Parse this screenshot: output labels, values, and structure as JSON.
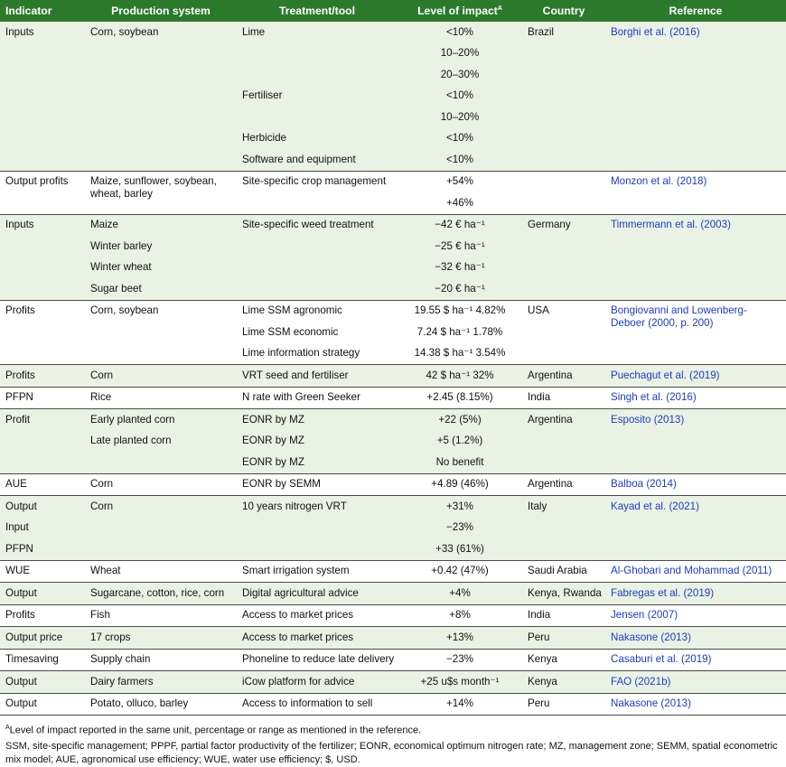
{
  "table": {
    "headers": {
      "indicator": "Indicator",
      "production_system": "Production system",
      "treatment": "Treatment/tool",
      "impact": "Level of impact",
      "impact_sup": "A",
      "country": "Country",
      "reference": "Reference"
    },
    "rows": [
      {
        "indicator": "Inputs",
        "production": "Corn, soybean",
        "treatment": "Lime",
        "impact": "<10%",
        "country": "Brazil",
        "reference": "Borghi et al. (2016)"
      },
      {
        "impact": "10–20%"
      },
      {
        "impact": "20–30%"
      },
      {
        "treatment": "Fertiliser",
        "impact": "<10%"
      },
      {
        "impact": "10–20%"
      },
      {
        "treatment": "Herbicide",
        "impact": "<10%"
      },
      {
        "treatment": "Software and equipment",
        "impact": "<10%"
      },
      {
        "indicator": "Output profits",
        "production": "Maize, sunflower, soybean, wheat, barley",
        "treatment": "Site-specific crop management",
        "impact": "+54%",
        "reference": "Monzon et al. (2018)"
      },
      {
        "impact": "+46%"
      },
      {
        "indicator": "Inputs",
        "production": "Maize",
        "treatment": "Site-specific weed treatment",
        "impact": "−42 € ha⁻¹",
        "country": "Germany",
        "reference": "Timmermann et al. (2003)"
      },
      {
        "production": "Winter barley",
        "impact": "−25 € ha⁻¹"
      },
      {
        "production": "Winter wheat",
        "impact": "−32 € ha⁻¹"
      },
      {
        "production": "Sugar beet",
        "impact": "−20 € ha⁻¹"
      },
      {
        "indicator": "Profits",
        "production": "Corn, soybean",
        "treatment": "Lime SSM agronomic",
        "impact": "19.55 $ ha⁻¹ 4.82%",
        "country": "USA",
        "reference": "Bongiovanni and Lowenberg-Deboer (2000, p. 200)"
      },
      {
        "treatment": "Lime SSM economic",
        "impact": "7.24 $ ha⁻¹ 1.78%"
      },
      {
        "treatment": "Lime information strategy",
        "impact": "14.38 $ ha⁻¹ 3.54%"
      },
      {
        "indicator": "Profits",
        "production": "Corn",
        "treatment": "VRT seed and fertiliser",
        "impact": "42 $ ha⁻¹ 32%",
        "country": "Argentina",
        "reference": "Puechagut et al. (2019)"
      },
      {
        "indicator": "PFPN",
        "production": "Rice",
        "treatment": "N rate with Green Seeker",
        "impact": "+2.45 (8.15%)",
        "country": "India",
        "reference": "Singh et al. (2016)"
      },
      {
        "indicator": "Profit",
        "production": "Early planted corn",
        "treatment": "EONR by MZ",
        "impact": "+22 (5%)",
        "country": "Argentina",
        "reference": "Esposito (2013)"
      },
      {
        "production": "Late planted corn",
        "treatment": "EONR by MZ",
        "impact": "+5 (1.2%)"
      },
      {
        "treatment": "EONR by MZ",
        "impact": "No benefit"
      },
      {
        "indicator": "AUE",
        "production": "Corn",
        "treatment": "EONR by SEMM",
        "impact": "+4.89 (46%)",
        "country": "Argentina",
        "reference": "Balboa (2014)"
      },
      {
        "indicator": "Output",
        "production": "Corn",
        "treatment": "10 years nitrogen VRT",
        "impact": "+31%",
        "country": "Italy",
        "reference": "Kayad et al. (2021)"
      },
      {
        "indicator": "Input",
        "impact": "−23%"
      },
      {
        "indicator": "PFPN",
        "impact": "+33 (61%)"
      },
      {
        "indicator": "WUE",
        "production": "Wheat",
        "treatment": "Smart irrigation system",
        "impact": "+0.42 (47%)",
        "country": "Saudi Arabia",
        "reference": "Al-Ghobari and Mohammad (2011)"
      },
      {
        "indicator": "Output",
        "production": "Sugarcane, cotton, rice, corn",
        "treatment": "Digital agricultural advice",
        "impact": "+4%",
        "country": "Kenya, Rwanda",
        "reference": "Fabregas et al. (2019)"
      },
      {
        "indicator": "Profits",
        "production": "Fish",
        "treatment": "Access to market prices",
        "impact": "+8%",
        "country": "India",
        "reference": "Jensen (2007)"
      },
      {
        "indicator": "Output price",
        "production": "17 crops",
        "treatment": "Access to market prices",
        "impact": "+13%",
        "country": "Peru",
        "reference": "Nakasone (2013)"
      },
      {
        "indicator": "Timesaving",
        "production": "Supply chain",
        "treatment": "Phoneline to reduce late delivery",
        "impact": "−23%",
        "country": "Kenya",
        "reference": "Casaburi et al. (2019)"
      },
      {
        "indicator": "Output",
        "production": "Dairy farmers",
        "treatment": "iCow platform for advice",
        "impact": "+25 u$s month⁻¹",
        "country": "Kenya",
        "reference": "FAO (2021b)"
      },
      {
        "indicator": "Output",
        "production": "Potato, olluco, barley",
        "treatment": "Access to information to sell",
        "impact": "+14%",
        "country": "Peru",
        "reference": "Nakasone (2013)"
      }
    ]
  },
  "footnotes": {
    "a_sup": "A",
    "a_text": "Level of impact reported in the same unit, percentage or range as mentioned in the reference.",
    "abbreviations": "SSM, site-specific management; PPPF, partial factor productivity of the fertilizer; EONR, economical optimum nitrogen rate; MZ, management zone; SEMM, spatial econometric mix model; AUE, agronomical use efficiency; WUE, water use efficiency; $, USD."
  },
  "colors": {
    "header_bg": "#2b7a2b",
    "band_bg": "#eaf2e3",
    "link": "#1a3ccc"
  }
}
